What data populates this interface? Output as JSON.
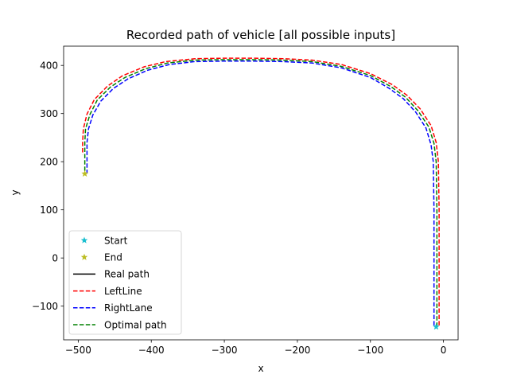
{
  "chart_data": {
    "type": "line",
    "title": "Recorded path of vehicle [all possible inputs]",
    "xlabel": "x",
    "ylabel": "y",
    "xlim": [
      -520,
      20
    ],
    "ylim": [
      -170,
      440
    ],
    "xticks": [
      {
        "value": -500,
        "label": "−500"
      },
      {
        "value": -400,
        "label": "−400"
      },
      {
        "value": -300,
        "label": "−300"
      },
      {
        "value": -200,
        "label": "−200"
      },
      {
        "value": -100,
        "label": "−100"
      },
      {
        "value": 0,
        "label": "0"
      }
    ],
    "yticks": [
      {
        "value": -100,
        "label": "−100"
      },
      {
        "value": 0,
        "label": "0"
      },
      {
        "value": 100,
        "label": "100"
      },
      {
        "value": 200,
        "label": "200"
      },
      {
        "value": 300,
        "label": "300"
      },
      {
        "value": 400,
        "label": "400"
      }
    ],
    "grid": false,
    "legend_position": "lower-left",
    "legend": [
      {
        "label": "Start",
        "marker": "star",
        "color": "#17becf"
      },
      {
        "label": "End",
        "marker": "star",
        "color": "#bcbd22"
      },
      {
        "label": "Real path",
        "style": "solid",
        "color": "#000000"
      },
      {
        "label": "LeftLine",
        "style": "dashed",
        "color": "#ff0000"
      },
      {
        "label": "RightLane",
        "style": "dashed",
        "color": "#0000ff"
      },
      {
        "label": "Optimal path",
        "style": "dashed",
        "color": "#008000"
      }
    ],
    "markers": {
      "start": {
        "x": -10,
        "y": -143
      },
      "end": {
        "x": -491,
        "y": 175
      }
    },
    "series": [
      {
        "name": "LeftLine",
        "color": "#ff0000",
        "style": "dashed",
        "x": [
          -6,
          -6,
          -6,
          -7,
          -10,
          -17,
          -32,
          -50,
          -70,
          -100,
          -140,
          -180,
          -220,
          -260,
          -300,
          -340,
          -380,
          -410,
          -440,
          -460,
          -478,
          -488,
          -493,
          -494,
          -494
        ],
        "y": [
          -140,
          0,
          100,
          200,
          240,
          275,
          310,
          338,
          360,
          383,
          402,
          411,
          414,
          415,
          415,
          414,
          408,
          397,
          378,
          357,
          329,
          299,
          268,
          240,
          215
        ]
      },
      {
        "name": "RightLane",
        "color": "#0000ff",
        "style": "dashed",
        "x": [
          -13,
          -13,
          -13,
          -14,
          -17,
          -24,
          -38,
          -55,
          -75,
          -100,
          -140,
          -180,
          -220,
          -260,
          -300,
          -340,
          -375,
          -405,
          -432,
          -452,
          -469,
          -480,
          -486,
          -488,
          -488
        ],
        "y": [
          -140,
          0,
          100,
          200,
          235,
          270,
          303,
          331,
          353,
          375,
          395,
          405,
          408,
          409,
          409,
          408,
          402,
          390,
          372,
          352,
          326,
          297,
          268,
          240,
          175
        ]
      },
      {
        "name": "Optimal path",
        "color": "#008000",
        "style": "dashed",
        "x": [
          -9,
          -9,
          -9,
          -10,
          -13,
          -20,
          -35,
          -52,
          -72,
          -100,
          -140,
          -180,
          -220,
          -260,
          -300,
          -340,
          -378,
          -408,
          -436,
          -456,
          -474,
          -484,
          -490,
          -491,
          -491
        ],
        "y": [
          -143,
          0,
          100,
          200,
          238,
          272,
          306,
          334,
          356,
          379,
          398,
          408,
          411,
          412,
          412,
          411,
          405,
          393,
          375,
          355,
          328,
          298,
          268,
          240,
          175
        ]
      }
    ]
  }
}
